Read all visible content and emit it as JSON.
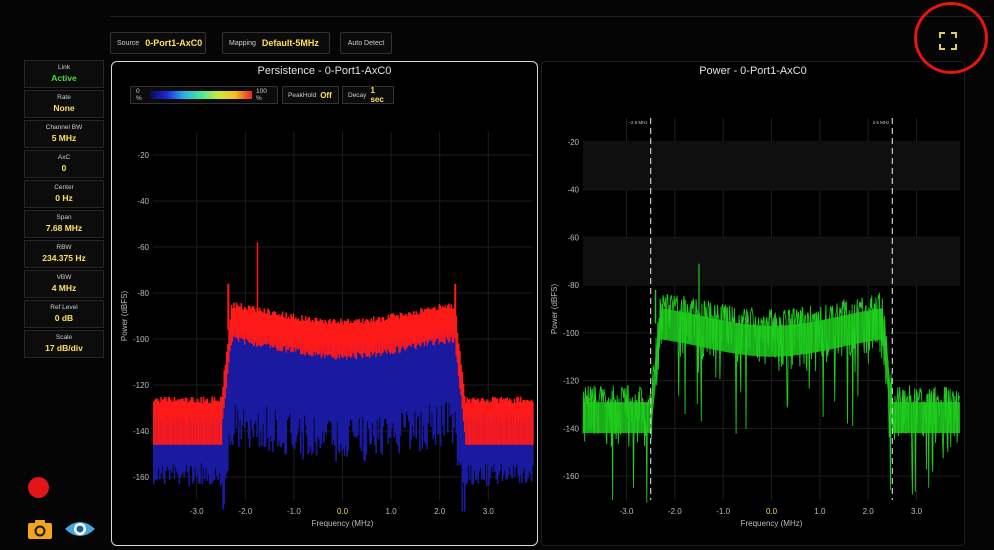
{
  "toolbar": {
    "source_label": "Source",
    "source_value": "0-Port1-AxC0",
    "mapping_label": "Mapping",
    "mapping_value": "Default-5MHz",
    "auto_detect_label": "Auto Detect"
  },
  "sidebar": {
    "items": [
      {
        "label": "Link",
        "value": "Active"
      },
      {
        "label": "Rate",
        "value": "None"
      },
      {
        "label": "Channel BW",
        "value": "5 MHz"
      },
      {
        "label": "AxC",
        "value": "0"
      },
      {
        "label": "Center",
        "value": "0 Hz"
      },
      {
        "label": "Span",
        "value": "7.68 MHz"
      },
      {
        "label": "RBW",
        "value": "234.375 Hz"
      },
      {
        "label": "VBW",
        "value": "4 MHz"
      },
      {
        "label": "Ref Level",
        "value": "0 dB"
      },
      {
        "label": "Scale",
        "value": "17 dB/div"
      }
    ]
  },
  "persistence": {
    "title": "Persistence - 0-Port1-AxC0",
    "legend_min": "0 %",
    "legend_max": "100 %",
    "peakhold_label": "PeakHold",
    "peakhold_value": "Off",
    "decay_label": "Decay",
    "decay_value": "1 sec"
  },
  "power": {
    "title": "Power - 0-Port1-AxC0",
    "marker_left": "-2.5 MHz",
    "marker_right": "2.5 MHz"
  },
  "axes": {
    "xlabel": "Frequency (MHz)",
    "ylabel": "Power (dBFS)",
    "x_ticks": [
      "-3.0",
      "-2.0",
      "-1.0",
      "0.0",
      "1.0",
      "2.0",
      "3.0"
    ],
    "y_ticks": [
      "-20",
      "-40",
      "-60",
      "-80",
      "-100",
      "-120",
      "-140",
      "-160"
    ]
  },
  "colors": {
    "accent_yellow": "#ffe15a",
    "active_green": "#44dd44",
    "trace_green": "#1fcc1f",
    "persistence_red": "#ff1a1a",
    "persistence_blue": "#1a1aa0",
    "highlight_red": "#e8140f"
  },
  "icons": {
    "fullscreen": "fullscreen-icon",
    "record": "record-icon",
    "camera": "camera-icon",
    "eye": "eye-icon"
  }
}
